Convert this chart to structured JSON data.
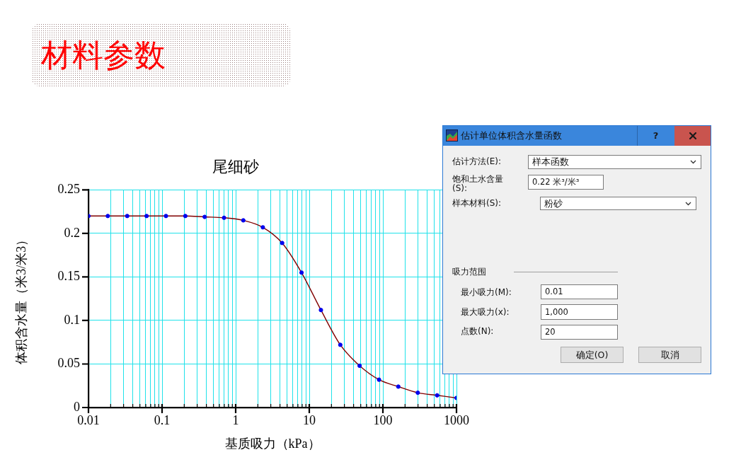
{
  "chart_data": [
    {
      "type": "line",
      "title": "尾细砂",
      "xlabel": "基质吸力（kPa）",
      "ylabel": "体积含水量（米3/米3）",
      "annotations": [
        "材料参数"
      ],
      "x": [
        0.01,
        0.0183,
        0.0336,
        0.0616,
        0.113,
        0.207,
        0.379,
        0.695,
        1.27,
        2.34,
        4.28,
        7.85,
        14.4,
        26.4,
        48.3,
        88.6,
        162,
        298,
        546,
        1000
      ],
      "series": [
        {
          "type": "line",
          "color": "#800000",
          "marker": "none",
          "values": [
            0.22,
            0.22,
            0.22,
            0.22,
            0.22,
            0.22,
            0.219,
            0.218,
            0.215,
            0.207,
            0.189,
            0.155,
            0.112,
            0.072,
            0.048,
            0.032,
            0.024,
            0.017,
            0.014,
            0.011
          ]
        },
        {
          "type": "scatter",
          "color": "#0000ee",
          "marker": "circle",
          "values": [
            0.22,
            0.22,
            0.22,
            0.22,
            0.22,
            0.22,
            0.219,
            0.218,
            0.215,
            0.207,
            0.189,
            0.155,
            0.112,
            0.072,
            0.048,
            0.032,
            0.024,
            0.017,
            0.014,
            0.011
          ]
        }
      ],
      "log": "x",
      "xlim": [
        0.01,
        1000
      ],
      "ylim": [
        0,
        0.25
      ],
      "xticks": [
        0.01,
        {
          "value": 0.02,
          "label": null
        },
        {
          "value": 0.03,
          "label": null
        },
        {
          "value": 0.04,
          "label": null
        },
        {
          "value": 0.05,
          "label": null
        },
        {
          "value": 0.06,
          "label": null
        },
        {
          "value": 0.07,
          "label": null
        },
        {
          "value": 0.08,
          "label": null
        },
        {
          "value": 0.09,
          "label": null
        },
        0.1,
        {
          "value": 0.2,
          "label": null
        },
        {
          "value": 0.3,
          "label": null
        },
        {
          "value": 0.4,
          "label": null
        },
        {
          "value": 0.5,
          "label": null
        },
        {
          "value": 0.6,
          "label": null
        },
        {
          "value": 0.7,
          "label": null
        },
        {
          "value": 0.8,
          "label": null
        },
        {
          "value": 0.9,
          "label": null
        },
        1,
        {
          "value": 2,
          "label": null
        },
        {
          "value": 3,
          "label": null
        },
        {
          "value": 4,
          "label": null
        },
        {
          "value": 5,
          "label": null
        },
        {
          "value": 6,
          "label": null
        },
        {
          "value": 7,
          "label": null
        },
        {
          "value": 8,
          "label": null
        },
        {
          "value": 9,
          "label": null
        },
        10,
        {
          "value": 20,
          "label": null
        },
        {
          "value": 30,
          "label": null
        },
        {
          "value": 40,
          "label": null
        },
        {
          "value": 50,
          "label": null
        },
        {
          "value": 60,
          "label": null
        },
        {
          "value": 70,
          "label": null
        },
        {
          "value": 80,
          "label": null
        },
        {
          "value": 90,
          "label": null
        },
        100,
        {
          "value": 200,
          "label": null
        },
        {
          "value": 300,
          "label": null
        },
        {
          "value": 400,
          "label": null
        },
        {
          "value": 500,
          "label": null
        },
        {
          "value": 600,
          "label": null
        },
        {
          "value": 700,
          "label": null
        },
        {
          "value": 800,
          "label": null
        },
        {
          "value": 900,
          "label": null
        },
        1000
      ],
      "yticks": [
        0,
        0.05,
        0.1,
        0.15,
        0.2,
        0.25
      ],
      "grid": true
    },
    {
      "type": "other",
      "title": "估计单位体积含水量函数",
      "annotations": [
        "?",
        "估计方法(E):",
        "样本函数",
        "饱和土水含量(S):",
        "0.22 米³/米³",
        "样本材料(S):",
        "粉砂",
        "吸力范围",
        "最小吸力(M):",
        "0.01",
        "最大吸力(x):",
        "1,000",
        "点数(N):",
        "20",
        "确定(O)",
        "取消"
      ]
    }
  ]
}
